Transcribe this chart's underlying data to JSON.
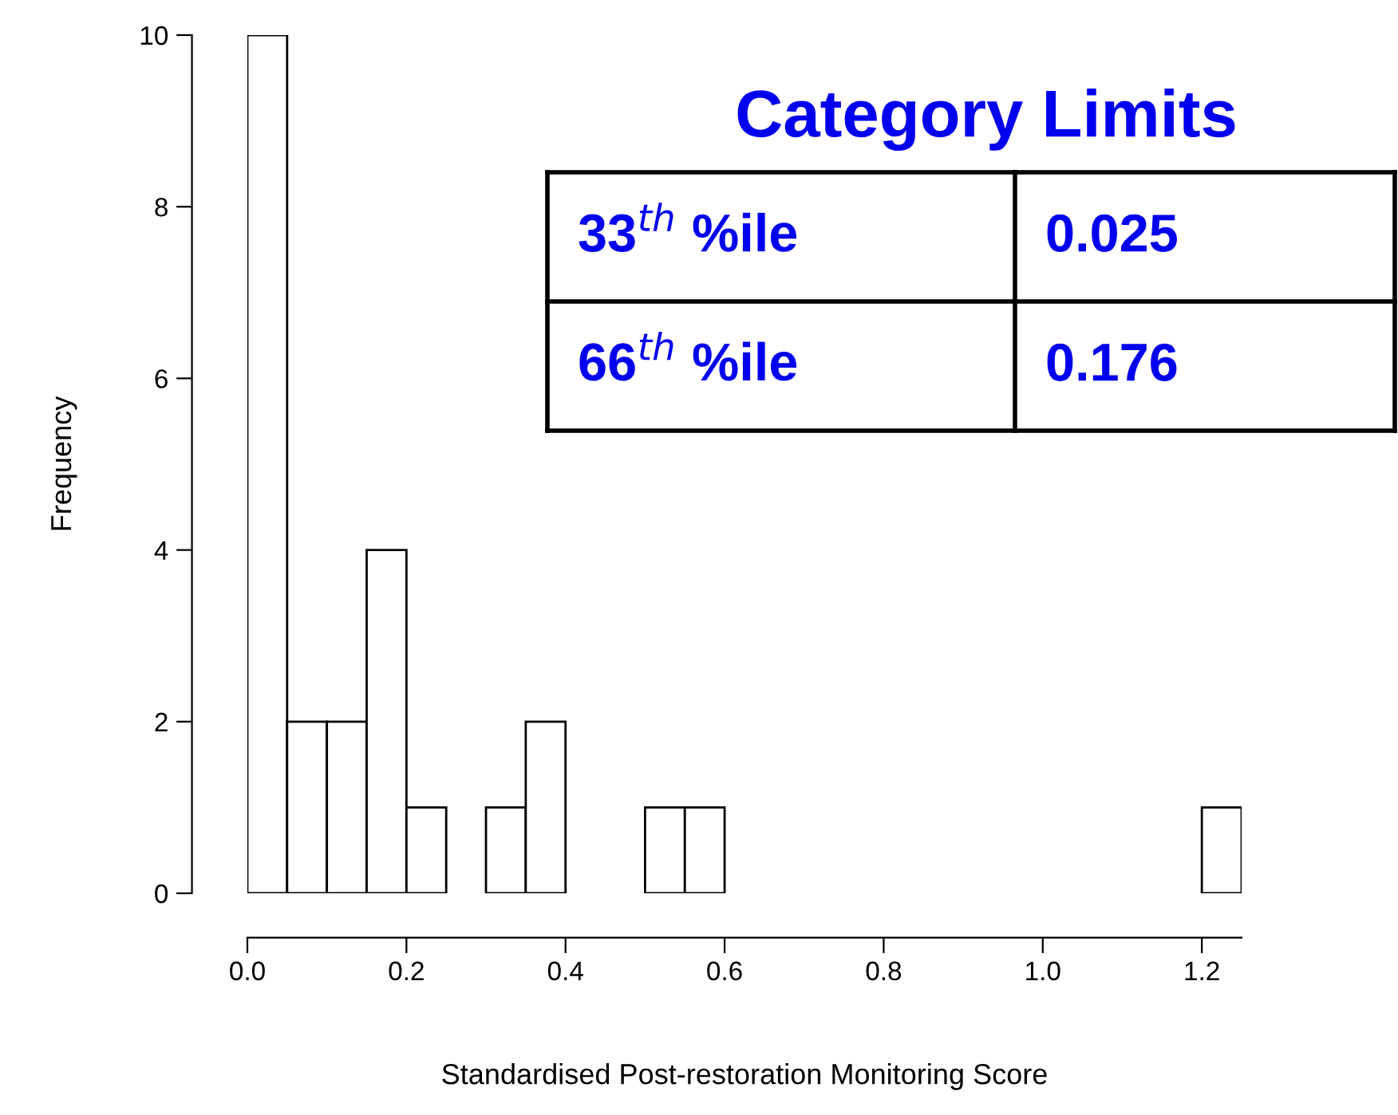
{
  "chart_data": {
    "type": "histogram",
    "xlabel": "Standardised Post-restoration Monitoring Score",
    "ylabel": "Frequency",
    "bins": [
      0,
      0.05,
      0.1,
      0.15,
      0.2,
      0.25,
      0.3,
      0.35,
      0.4,
      0.45,
      0.5,
      0.55,
      0.6,
      0.65,
      0.7,
      0.75,
      0.8,
      0.85,
      0.9,
      0.95,
      1.0,
      1.05,
      1.1,
      1.15,
      1.2,
      1.25
    ],
    "values": [
      10,
      2,
      2,
      4,
      1,
      0,
      1,
      2,
      0,
      0,
      1,
      1,
      0,
      0,
      0,
      0,
      0,
      0,
      0,
      0,
      0,
      0,
      0,
      0,
      1
    ],
    "color": "#ffffff",
    "xlim": [
      0,
      1.25
    ],
    "xticks": [
      {
        "value": 0,
        "label": "0.0"
      },
      0.2,
      0.4,
      0.6,
      0.8,
      {
        "value": 1.0,
        "label": "1.0"
      },
      1.2
    ],
    "ylim": [
      0,
      10
    ],
    "yticks": [
      0,
      2,
      4,
      6,
      8,
      10
    ],
    "grid": false,
    "legend": false,
    "annotations": [
      "Category Limits",
      "33$^{th}$ %ile",
      "0.025",
      "66$^{th}$ %ile",
      "0.176"
    ]
  }
}
